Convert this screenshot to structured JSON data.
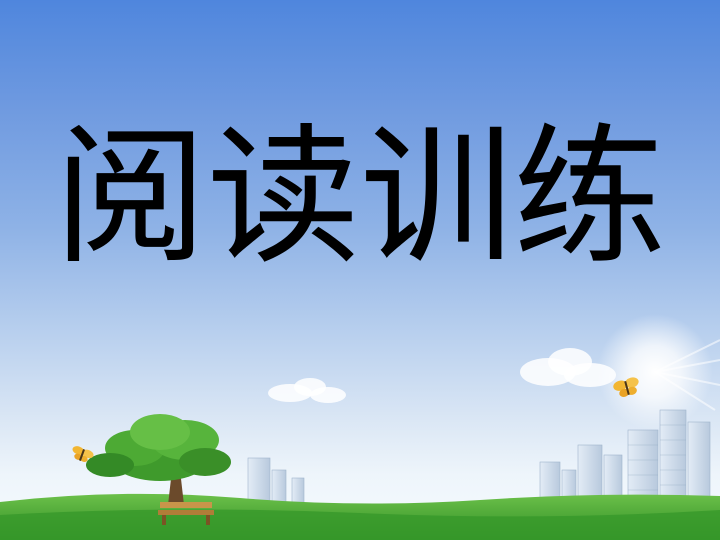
{
  "slide": {
    "title": "阅读训练"
  },
  "colors": {
    "sky_top": "#4f86dd",
    "sky_bottom": "#f6fbfe",
    "grass": "#3fa32f",
    "title_text": "#000000"
  },
  "icons": [
    "tree-icon",
    "bench-icon",
    "butterfly-icon",
    "cloud-icon",
    "building-icon",
    "sun-glow-icon"
  ]
}
